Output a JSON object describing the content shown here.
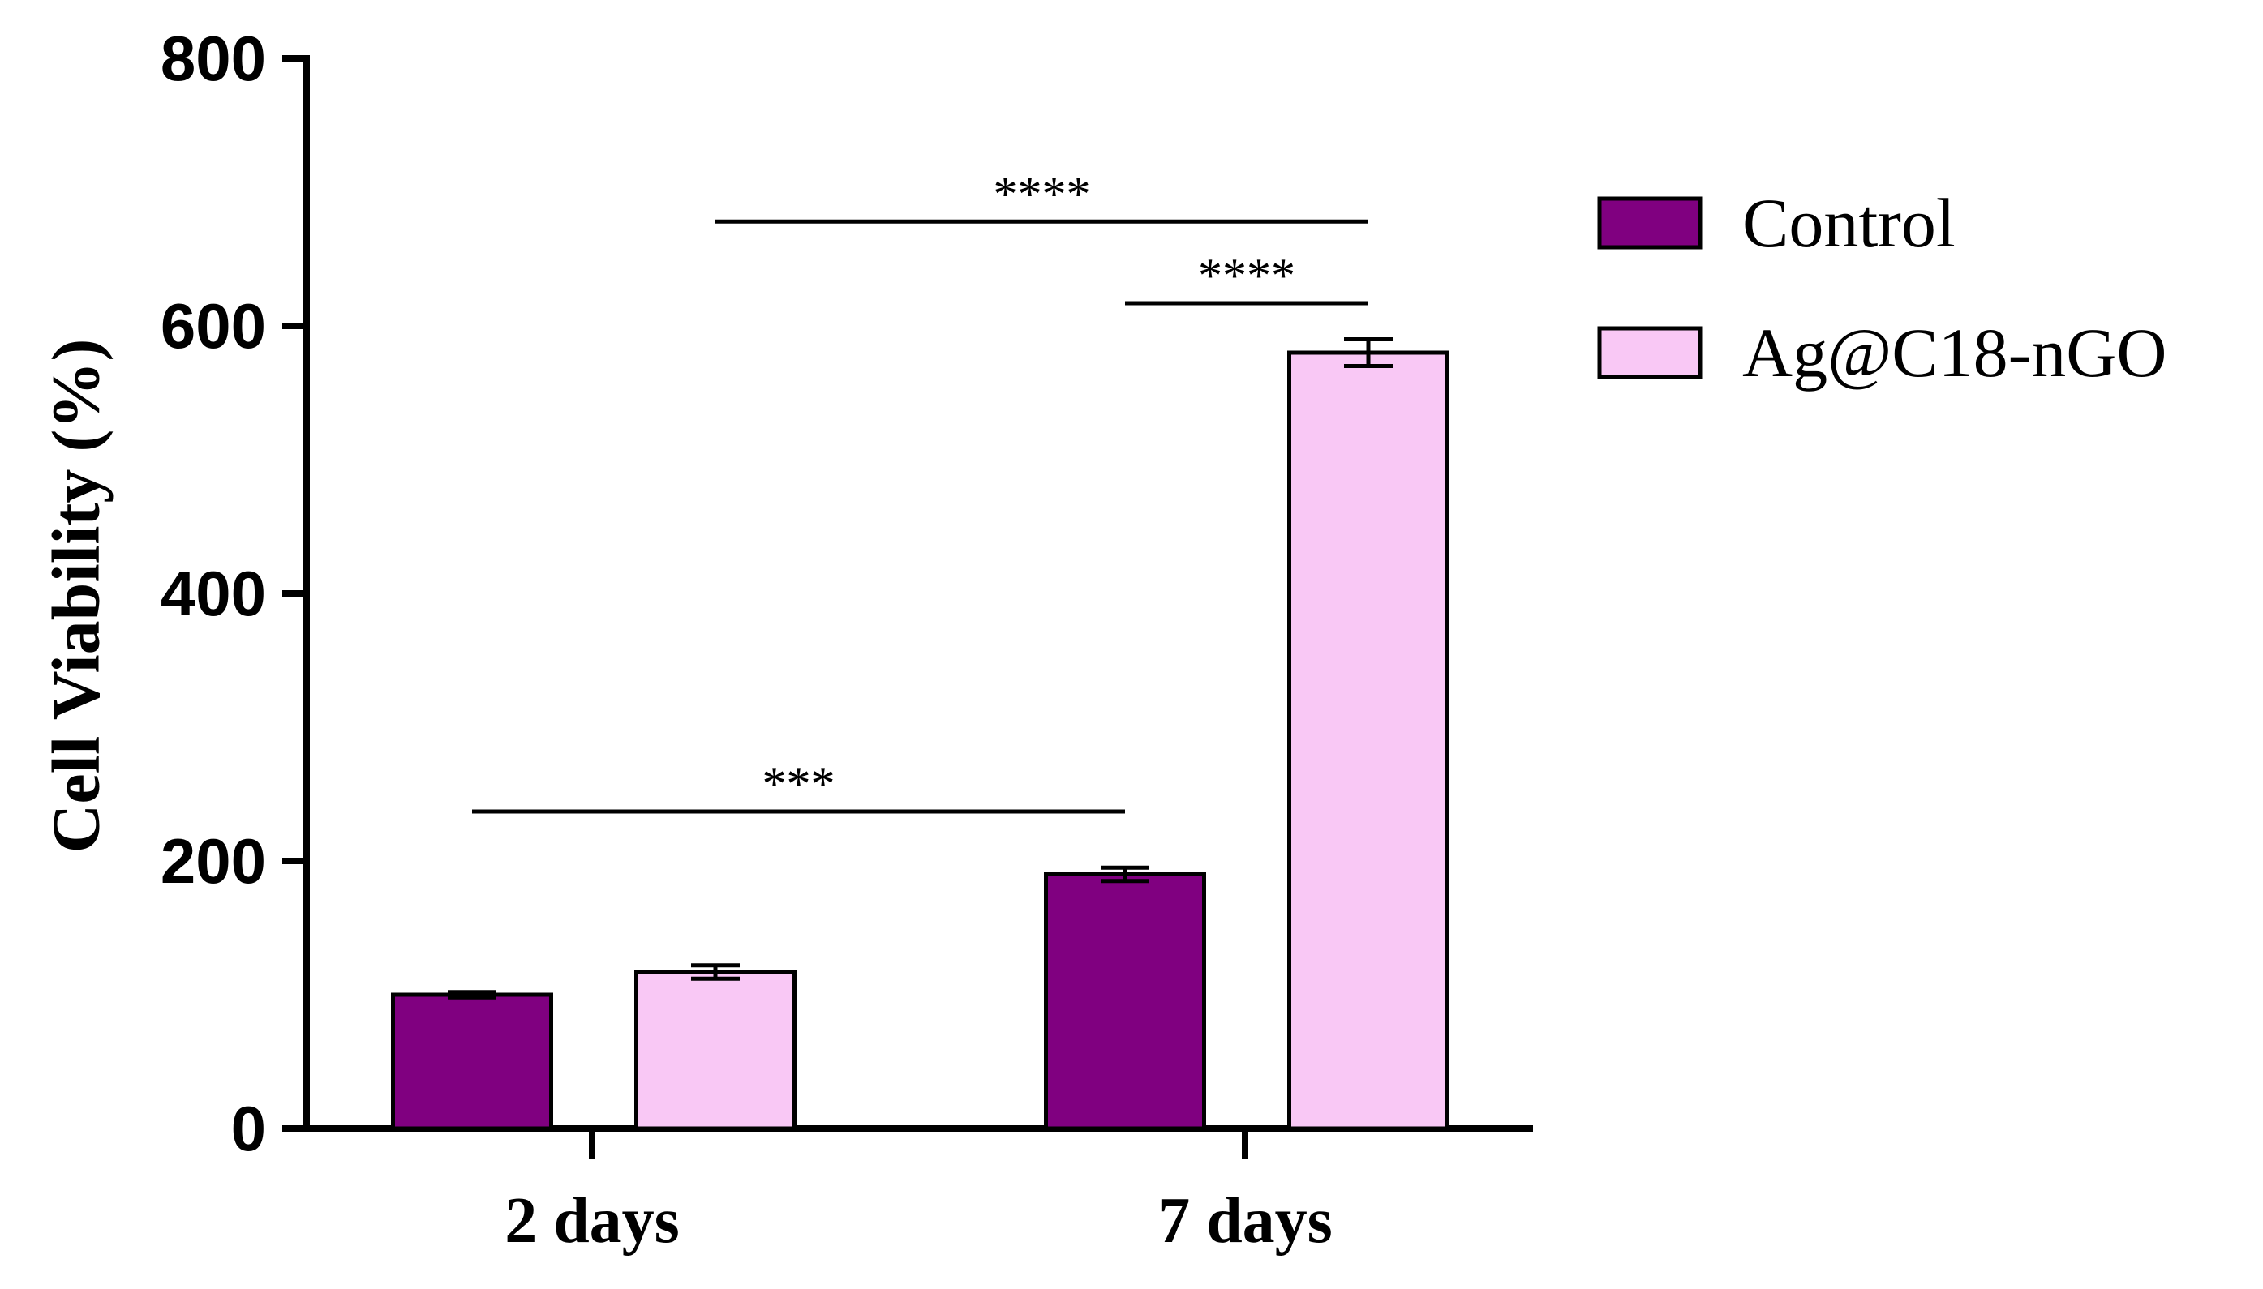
{
  "chart_data": {
    "type": "bar",
    "title": "",
    "xlabel": "",
    "ylabel": "Cell Viability (%)",
    "ylim": [
      0,
      800
    ],
    "yticks": [
      "0",
      "200",
      "400",
      "600",
      "800"
    ],
    "categories": [
      "2 days",
      "7 days"
    ],
    "grid": false,
    "legend_position": "right",
    "series": [
      {
        "name": "Control",
        "color": "#800080",
        "values": [
          100,
          190
        ],
        "errors": [
          2,
          5
        ]
      },
      {
        "name": "Ag@C18-nGO",
        "color": "#f9c8f5",
        "values": [
          117,
          580
        ],
        "errors": [
          5,
          10
        ]
      }
    ],
    "significance": [
      {
        "from": {
          "series": 0,
          "category": 0
        },
        "to": {
          "series": 0,
          "category": 1
        },
        "label": "***",
        "y": 237
      },
      {
        "from": {
          "series": 1,
          "category": 0
        },
        "to": {
          "series": 1,
          "category": 1
        },
        "label": "****",
        "y": 678
      },
      {
        "from": {
          "series": 0,
          "category": 1
        },
        "to": {
          "series": 1,
          "category": 1
        },
        "label": "****",
        "y": 617
      }
    ]
  }
}
